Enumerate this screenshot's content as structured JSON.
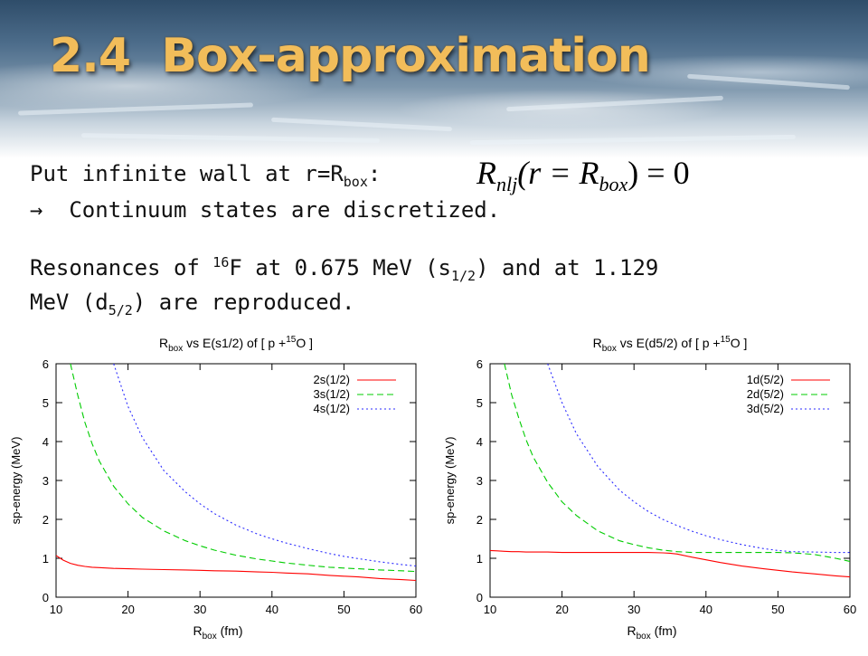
{
  "slide": {
    "title": "2.4  Box-approximation",
    "line1_prefix": "Put infinite wall at r=R",
    "line1_sub": "box",
    "line1_suffix": ": ",
    "equation": {
      "r": "R",
      "r_sub": "nlj",
      "open": "(r = R",
      "box_sub": "box",
      "close": ") = ",
      "zero": "0"
    },
    "line2_arrow": "→",
    "line2_text": "  Continuum states are discretized.",
    "line3_a": "Resonances of ",
    "line3_sup": "16",
    "line3_b": "F at 0.675 MeV (s",
    "line3_sub": "1/2",
    "line3_c": ") and at 1.129",
    "line4_a": "MeV (d",
    "line4_sub": "5/2",
    "line4_b": ") are reproduced."
  },
  "chart_data": [
    {
      "type": "line",
      "title_parts": {
        "r": "R",
        "sub": "box",
        "mid": "  vs  E(s1/2)  of  [ p +",
        "sup": "15",
        "end": "O ]"
      },
      "xlabel_parts": {
        "r": "R",
        "sub": "box",
        "rest": " (fm)"
      },
      "ylabel": "sp-energy (MeV)",
      "xlim": [
        10,
        60
      ],
      "ylim": [
        0,
        6
      ],
      "xticks": [
        10,
        20,
        30,
        40,
        50,
        60
      ],
      "yticks": [
        0,
        1,
        2,
        3,
        4,
        5,
        6
      ],
      "legend_position": "top-right",
      "x": [
        10,
        11,
        12,
        13,
        14,
        15,
        16,
        18,
        20,
        22,
        25,
        28,
        30,
        32,
        35,
        38,
        40,
        42,
        45,
        48,
        50,
        52,
        55,
        58,
        60
      ],
      "series": [
        {
          "name": "2s(1/2)",
          "color": "#ff0000",
          "dash": "",
          "values": [
            1.07,
            0.95,
            0.87,
            0.82,
            0.79,
            0.77,
            0.76,
            0.74,
            0.73,
            0.72,
            0.71,
            0.7,
            0.69,
            0.68,
            0.67,
            0.65,
            0.64,
            0.62,
            0.6,
            0.56,
            0.54,
            0.52,
            0.48,
            0.45,
            0.43
          ]
        },
        {
          "name": "3s(1/2)",
          "color": "#00cc00",
          "dash": "7,4",
          "values": [
            null,
            null,
            6.0,
            5.2,
            4.5,
            3.95,
            3.5,
            2.85,
            2.4,
            2.05,
            1.7,
            1.45,
            1.32,
            1.21,
            1.08,
            0.98,
            0.93,
            0.88,
            0.82,
            0.77,
            0.75,
            0.73,
            0.7,
            0.68,
            0.66
          ]
        },
        {
          "name": "4s(1/2)",
          "color": "#2b2bff",
          "dash": "2,3",
          "values": [
            null,
            null,
            null,
            null,
            null,
            null,
            null,
            6.0,
            4.9,
            4.1,
            3.25,
            2.7,
            2.4,
            2.15,
            1.85,
            1.62,
            1.5,
            1.39,
            1.25,
            1.12,
            1.05,
            0.99,
            0.91,
            0.84,
            0.8
          ]
        }
      ]
    },
    {
      "type": "line",
      "title_parts": {
        "r": "R",
        "sub": "box",
        "mid": "  vs  E(d5/2)  of  [ p +",
        "sup": "15",
        "end": "O ]"
      },
      "xlabel_parts": {
        "r": "R",
        "sub": "box",
        "rest": " (fm)"
      },
      "ylabel": "sp-energy (MeV)",
      "xlim": [
        10,
        60
      ],
      "ylim": [
        0,
        6
      ],
      "xticks": [
        10,
        20,
        30,
        40,
        50,
        60
      ],
      "yticks": [
        0,
        1,
        2,
        3,
        4,
        5,
        6
      ],
      "legend_position": "top-right",
      "x": [
        10,
        11,
        12,
        13,
        14,
        15,
        16,
        18,
        20,
        22,
        25,
        28,
        30,
        32,
        34,
        35,
        36,
        38,
        40,
        42,
        45,
        48,
        50,
        52,
        55,
        58,
        60
      ],
      "series": [
        {
          "name": "1d(5/2)",
          "color": "#ff0000",
          "dash": "",
          "values": [
            1.2,
            1.19,
            1.18,
            1.17,
            1.17,
            1.16,
            1.16,
            1.16,
            1.15,
            1.15,
            1.15,
            1.15,
            1.15,
            1.15,
            1.14,
            1.13,
            1.11,
            1.03,
            0.96,
            0.89,
            0.8,
            0.73,
            0.69,
            0.65,
            0.6,
            0.55,
            0.52
          ]
        },
        {
          "name": "2d(5/2)",
          "color": "#00cc00",
          "dash": "7,4",
          "values": [
            null,
            null,
            6.0,
            5.2,
            4.6,
            4.05,
            3.6,
            2.95,
            2.45,
            2.1,
            1.7,
            1.45,
            1.35,
            1.27,
            1.21,
            1.19,
            1.17,
            1.15,
            1.15,
            1.15,
            1.15,
            1.15,
            1.15,
            1.14,
            1.1,
            1.0,
            0.92
          ]
        },
        {
          "name": "3d(5/2)",
          "color": "#2b2bff",
          "dash": "2,3",
          "values": [
            null,
            null,
            null,
            null,
            null,
            null,
            null,
            6.0,
            5.0,
            4.2,
            3.35,
            2.75,
            2.45,
            2.2,
            2.0,
            1.92,
            1.84,
            1.7,
            1.58,
            1.48,
            1.35,
            1.25,
            1.2,
            1.17,
            1.16,
            1.15,
            1.15
          ]
        }
      ]
    }
  ]
}
